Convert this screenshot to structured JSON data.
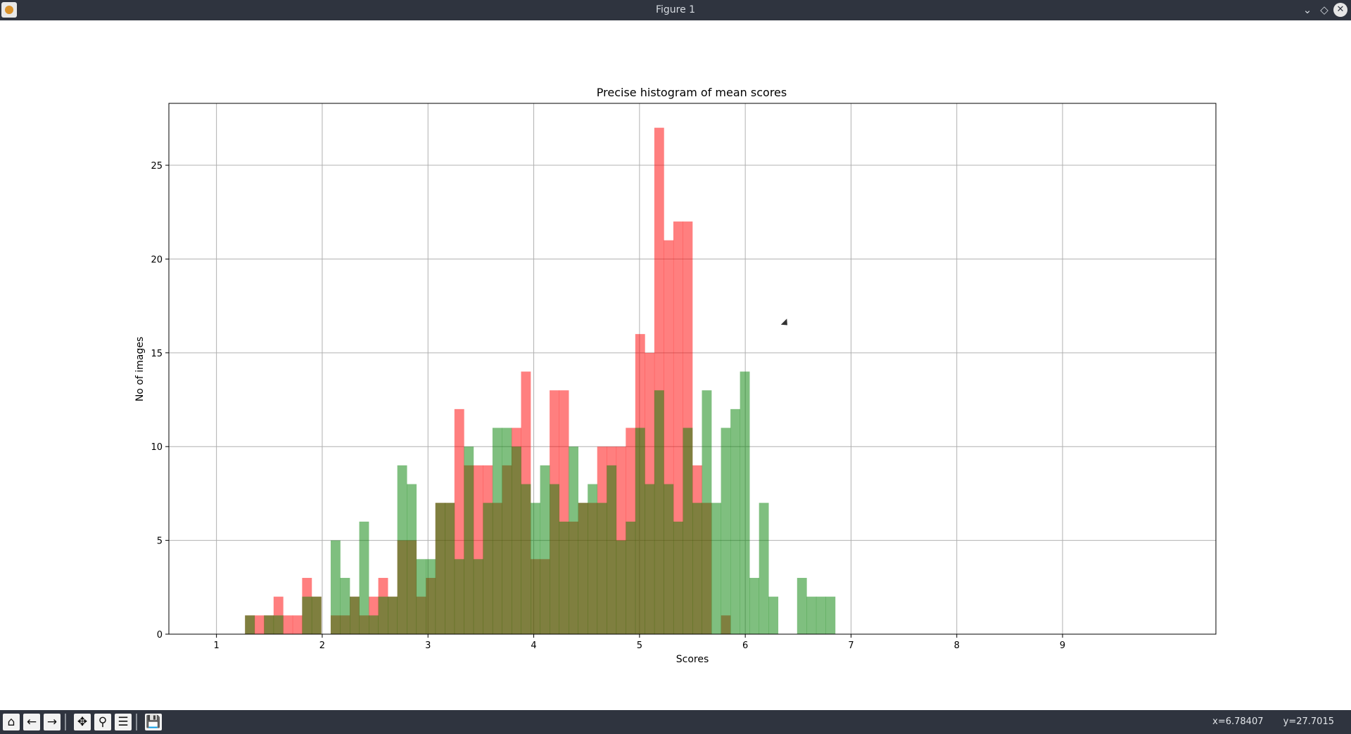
{
  "window": {
    "title": "Figure 1",
    "minimize_icon": "chevron-down-icon",
    "maximize_icon": "diamond-icon",
    "close_icon": "close-icon"
  },
  "toolbar": {
    "buttons": [
      "home-icon",
      "back-arrow-icon",
      "forward-arrow-icon",
      "pan-icon",
      "zoom-icon",
      "subplots-config-icon",
      "save-icon"
    ],
    "coord_x": "x=6.78407",
    "coord_y": "y=27.7015"
  },
  "chart_data": {
    "type": "bar",
    "title": "Precise histogram of mean scores",
    "xlabel": "Scores",
    "ylabel": "No of images",
    "xlim": [
      0.55,
      10.45
    ],
    "ylim": [
      0,
      28.3
    ],
    "xticks": [
      1,
      2,
      3,
      4,
      5,
      6,
      7,
      8,
      9
    ],
    "yticks": [
      0,
      5,
      10,
      15,
      20,
      25
    ],
    "grid": true,
    "bin_width": 0.0895,
    "series": [
      {
        "color": "#ff0000",
        "alpha": 0.5,
        "bin_start": [
          1.27,
          1.36,
          1.45,
          1.54,
          1.63,
          1.72,
          1.81,
          1.9,
          2.08,
          2.17,
          2.26,
          2.35,
          2.44,
          2.53,
          2.62,
          2.71,
          2.8,
          2.89,
          2.98,
          3.07,
          3.16,
          3.25,
          3.34,
          3.43,
          3.52,
          3.61,
          3.7,
          3.79,
          3.88,
          3.97,
          4.06,
          4.15,
          4.24,
          4.33,
          4.42,
          4.51,
          4.6,
          4.69,
          4.78,
          4.87,
          4.96,
          5.05,
          5.14,
          5.23,
          5.32,
          5.41,
          5.5,
          5.59,
          5.77
        ],
        "values": [
          1,
          1,
          1,
          2,
          1,
          1,
          3,
          2,
          1,
          1,
          2,
          1,
          2,
          3,
          2,
          5,
          5,
          2,
          3,
          7,
          7,
          12,
          9,
          9,
          9,
          7,
          9,
          11,
          14,
          4,
          4,
          13,
          13,
          6,
          7,
          7,
          10,
          10,
          10,
          11,
          16,
          15,
          27,
          21,
          22,
          22,
          9,
          7,
          1
        ]
      },
      {
        "color": "#008000",
        "alpha": 0.5,
        "bin_start": [
          1.27,
          1.36,
          1.45,
          1.54,
          1.63,
          1.72,
          1.81,
          1.9,
          2.08,
          2.17,
          2.26,
          2.35,
          2.44,
          2.53,
          2.62,
          2.71,
          2.8,
          2.89,
          2.98,
          3.07,
          3.16,
          3.25,
          3.34,
          3.43,
          3.52,
          3.61,
          3.7,
          3.79,
          3.88,
          3.97,
          4.06,
          4.15,
          4.24,
          4.33,
          4.42,
          4.51,
          4.6,
          4.69,
          4.78,
          4.87,
          4.96,
          5.05,
          5.14,
          5.23,
          5.32,
          5.41,
          5.5,
          5.59,
          5.68,
          5.77,
          5.86,
          5.95,
          6.04,
          6.13,
          6.22,
          6.31,
          6.49,
          6.58,
          6.67,
          6.76
        ],
        "values": [
          1,
          0,
          1,
          1,
          0,
          0,
          2,
          2,
          5,
          3,
          2,
          6,
          1,
          2,
          2,
          9,
          8,
          4,
          4,
          7,
          7,
          4,
          10,
          4,
          7,
          11,
          11,
          10,
          8,
          7,
          9,
          8,
          6,
          10,
          7,
          8,
          7,
          9,
          5,
          6,
          11,
          8,
          13,
          8,
          6,
          11,
          7,
          13,
          7,
          11,
          12,
          14,
          3,
          7,
          2,
          0,
          3,
          2,
          2,
          2
        ]
      }
    ]
  }
}
